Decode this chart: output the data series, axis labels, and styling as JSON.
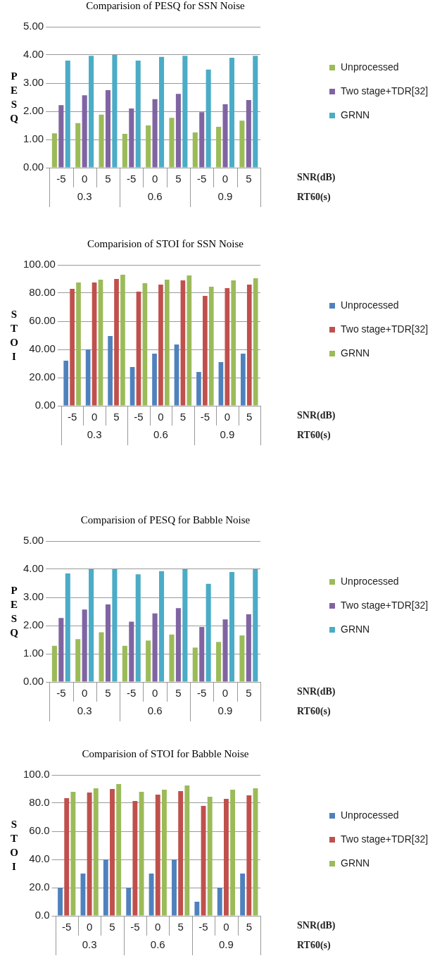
{
  "chart_data": [
    {
      "type": "bar",
      "title": "Comparision  of PESQ for SSN Noise",
      "ylabel": "PESQ",
      "categories": [
        "-5",
        "0",
        "5",
        "-5",
        "0",
        "5",
        "-5",
        "0",
        "5"
      ],
      "series": [
        {
          "name": "Unprocessed",
          "color": "#9bbb59",
          "values": [
            1.22,
            1.58,
            1.88,
            1.2,
            1.5,
            1.77,
            1.25,
            1.45,
            1.67
          ]
        },
        {
          "name": "Two stage+TDR[32]",
          "color": "#8064a2",
          "values": [
            2.22,
            2.57,
            2.75,
            2.1,
            2.43,
            2.62,
            1.97,
            2.25,
            2.4
          ]
        },
        {
          "name": "GRNN",
          "color": "#4bacc6",
          "values": [
            3.8,
            3.97,
            4.0,
            3.8,
            3.93,
            3.97,
            3.48,
            3.9,
            3.97
          ]
        }
      ],
      "ylim": [
        0,
        5
      ],
      "yticks": [
        {
          "value": 0,
          "label": "0.00"
        },
        {
          "value": 1,
          "label": "1.00"
        },
        {
          "value": 2,
          "label": "2.00"
        },
        {
          "value": 3,
          "label": "3.00"
        },
        {
          "value": 4,
          "label": "4.00"
        },
        {
          "value": 5,
          "label": "5.00"
        }
      ],
      "grid": "y",
      "legend": "right",
      "annotations": [
        "0.3",
        "0.6",
        "0.9",
        "SNR(dB)",
        "RT60(s)"
      ]
    },
    {
      "type": "bar",
      "title": "Comparision  of STOI for SSN  Noise",
      "ylabel": "STOI",
      "categories": [
        "-5",
        "0",
        "5",
        "-5",
        "0",
        "5",
        "-5",
        "0",
        "5"
      ],
      "series": [
        {
          "name": "Unprocessed",
          "color": "#4f81bd",
          "values": [
            32,
            40,
            49.5,
            27.5,
            37,
            43.5,
            24,
            31,
            37
          ]
        },
        {
          "name": "Two stage+TDR[32]",
          "color": "#c0504d",
          "values": [
            83,
            87.5,
            90,
            81,
            86,
            89,
            78,
            83.5,
            86
          ]
        },
        {
          "name": "GRNN",
          "color": "#9bbb59",
          "values": [
            87.5,
            89.5,
            93,
            87,
            89.5,
            92.5,
            84.5,
            89,
            90.5
          ]
        }
      ],
      "ylim": [
        0,
        100
      ],
      "yticks": [
        {
          "value": 0,
          "label": "0.00"
        },
        {
          "value": 20,
          "label": "20.00"
        },
        {
          "value": 40,
          "label": "40.00"
        },
        {
          "value": 60,
          "label": "60.00"
        },
        {
          "value": 80,
          "label": "80.00"
        },
        {
          "value": 100,
          "label": "100.00"
        }
      ],
      "grid": "y",
      "legend": "right",
      "annotations": [
        "0.3",
        "0.6",
        "0.9",
        "SNR(dB)",
        "RT60(s)"
      ]
    },
    {
      "type": "bar",
      "title": "Comparision  of PESQ for Babble Noise",
      "ylabel": "PESQ",
      "categories": [
        "-5",
        "0",
        "5",
        "-5",
        "0",
        "5",
        "-5",
        "0",
        "5"
      ],
      "series": [
        {
          "name": "Unprocessed",
          "color": "#9bbb59",
          "values": [
            1.28,
            1.52,
            1.76,
            1.28,
            1.47,
            1.68,
            1.22,
            1.42,
            1.65
          ]
        },
        {
          "name": "Two stage+TDR[32]",
          "color": "#8064a2",
          "values": [
            2.27,
            2.57,
            2.75,
            2.14,
            2.43,
            2.62,
            1.95,
            2.22,
            2.4
          ]
        },
        {
          "name": "GRNN",
          "color": "#4bacc6",
          "values": [
            3.85,
            4.0,
            4.0,
            3.82,
            3.93,
            4.0,
            3.48,
            3.9,
            4.0
          ]
        }
      ],
      "ylim": [
        0,
        5
      ],
      "yticks": [
        {
          "value": 0,
          "label": "0.00"
        },
        {
          "value": 1,
          "label": "1.00"
        },
        {
          "value": 2,
          "label": "2.00"
        },
        {
          "value": 3,
          "label": "3.00"
        },
        {
          "value": 4,
          "label": "4.00"
        },
        {
          "value": 5,
          "label": "5.00"
        }
      ],
      "grid": "y",
      "legend": "right",
      "annotations": [
        "0.3",
        "0.6",
        "0.9",
        "SNR(dB)",
        "RT60(s)"
      ]
    },
    {
      "type": "bar",
      "title": "Comparision  of STOI for Babble Noise",
      "ylabel": "STOI",
      "categories": [
        "-5",
        "0",
        "5",
        "-5",
        "0",
        "5",
        "-5",
        "0",
        "5"
      ],
      "series": [
        {
          "name": "Unprocessed",
          "color": "#4f81bd",
          "values": [
            20,
            30,
            40,
            20,
            30,
            40,
            10,
            20,
            30
          ]
        },
        {
          "name": "Two stage+TDR[32]",
          "color": "#c0504d",
          "values": [
            83.5,
            87.5,
            90,
            81.5,
            86,
            88.5,
            78,
            83,
            85.5
          ]
        },
        {
          "name": "GRNN",
          "color": "#9bbb59",
          "values": [
            88,
            90.5,
            93.5,
            88,
            89.5,
            92.5,
            84.5,
            89.5,
            90.5
          ]
        }
      ],
      "ylim": [
        0,
        100
      ],
      "yticks": [
        {
          "value": 0,
          "label": "0.0"
        },
        {
          "value": 20,
          "label": "20.0"
        },
        {
          "value": 40,
          "label": "40.0"
        },
        {
          "value": 60,
          "label": "60.0"
        },
        {
          "value": 80,
          "label": "80.0"
        },
        {
          "value": 100,
          "label": "100.0"
        }
      ],
      "grid": "y",
      "legend": "right",
      "annotations": [
        "0.3",
        "0.6",
        "0.9",
        "SNR(dB)",
        "RT60(s)"
      ]
    }
  ]
}
